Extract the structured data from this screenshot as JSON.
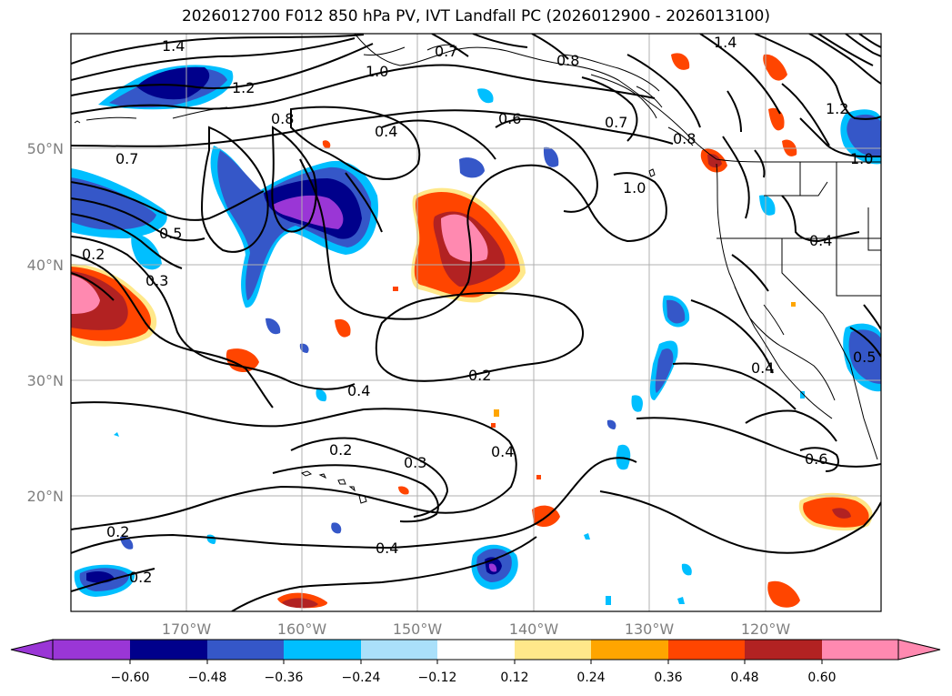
{
  "title": "2026012700 F012 850 hPa PV, IVT Landfall PC (2026012900 - 2026013100)",
  "lon_ticks": [
    "170°W",
    "160°W",
    "150°W",
    "140°W",
    "130°W",
    "120°W"
  ],
  "lat_ticks": [
    "50°N",
    "40°N",
    "30°N",
    "20°N"
  ],
  "contour_labels": [
    "1.4",
    "1.2",
    "1.0",
    "0.8",
    "0.7",
    "0.6",
    "0.4",
    "0.5",
    "0.3",
    "0.2",
    "0.7",
    "0.8",
    "1.4",
    "1.2",
    "1.0",
    "0.7",
    "1.0",
    "0.4",
    "0.4",
    "0.2",
    "0.4",
    "0.2",
    "0.3",
    "0.4",
    "0.6",
    "0.2",
    "0.2",
    "0.4",
    "0.8",
    "0.5"
  ],
  "colorbar": {
    "ticks": [
      "−0.60",
      "−0.48",
      "−0.36",
      "−0.24",
      "−0.12",
      "0.12",
      "0.24",
      "0.36",
      "0.48",
      "0.60"
    ],
    "colors": [
      "#9a36d6",
      "#00008b",
      "#3557c8",
      "#00bfff",
      "#aae0fa",
      "#ffffff",
      "#ffe88a",
      "#ffa500",
      "#ff4500",
      "#b22222",
      "#ff89b0"
    ],
    "min_color": "#9a36d6",
    "max_color": "#ff89b0"
  },
  "colors": {
    "coast": "#000000",
    "grid": "#b0b0b0",
    "contour": "#000000"
  }
}
